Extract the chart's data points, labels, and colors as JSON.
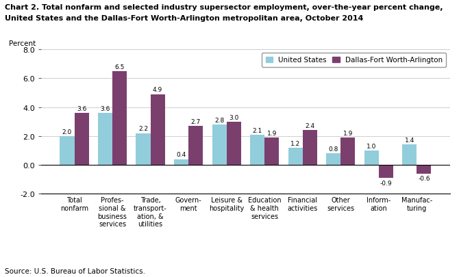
{
  "title_line1": "Chart 2. Total nonfarm and selected industry supersector employment, over-the-year percent change,",
  "title_line2": "United States and the Dallas-Fort Worth-Arlington metropolitan area, October 2014",
  "ylabel": "Percent",
  "categories": [
    "Total\nnonfarm",
    "Profes-\nsional &\nbusiness\nservices",
    "Trade,\ntransport-\nation, &\nutilities",
    "Govern-\nment",
    "Leisure &\nhospitality",
    "Education\n& health\nservices",
    "Financial\nactivities",
    "Other\nservices",
    "Inform-\nation",
    "Manufac-\nturing"
  ],
  "us_values": [
    2.0,
    3.6,
    2.2,
    0.4,
    2.8,
    2.1,
    1.2,
    0.8,
    1.0,
    1.4
  ],
  "dfw_values": [
    3.6,
    6.5,
    4.9,
    2.7,
    3.0,
    1.9,
    2.4,
    1.9,
    -0.9,
    -0.6
  ],
  "us_color": "#92CDDC",
  "dfw_color": "#7B3F6E",
  "ylim": [
    -2.0,
    8.0
  ],
  "yticks": [
    -2.0,
    0.0,
    2.0,
    4.0,
    6.0,
    8.0
  ],
  "legend_us": "United States",
  "legend_dfw": "Dallas-Fort Worth-Arlington",
  "source": "Source: U.S. Bureau of Labor Statistics.",
  "bar_width": 0.38
}
